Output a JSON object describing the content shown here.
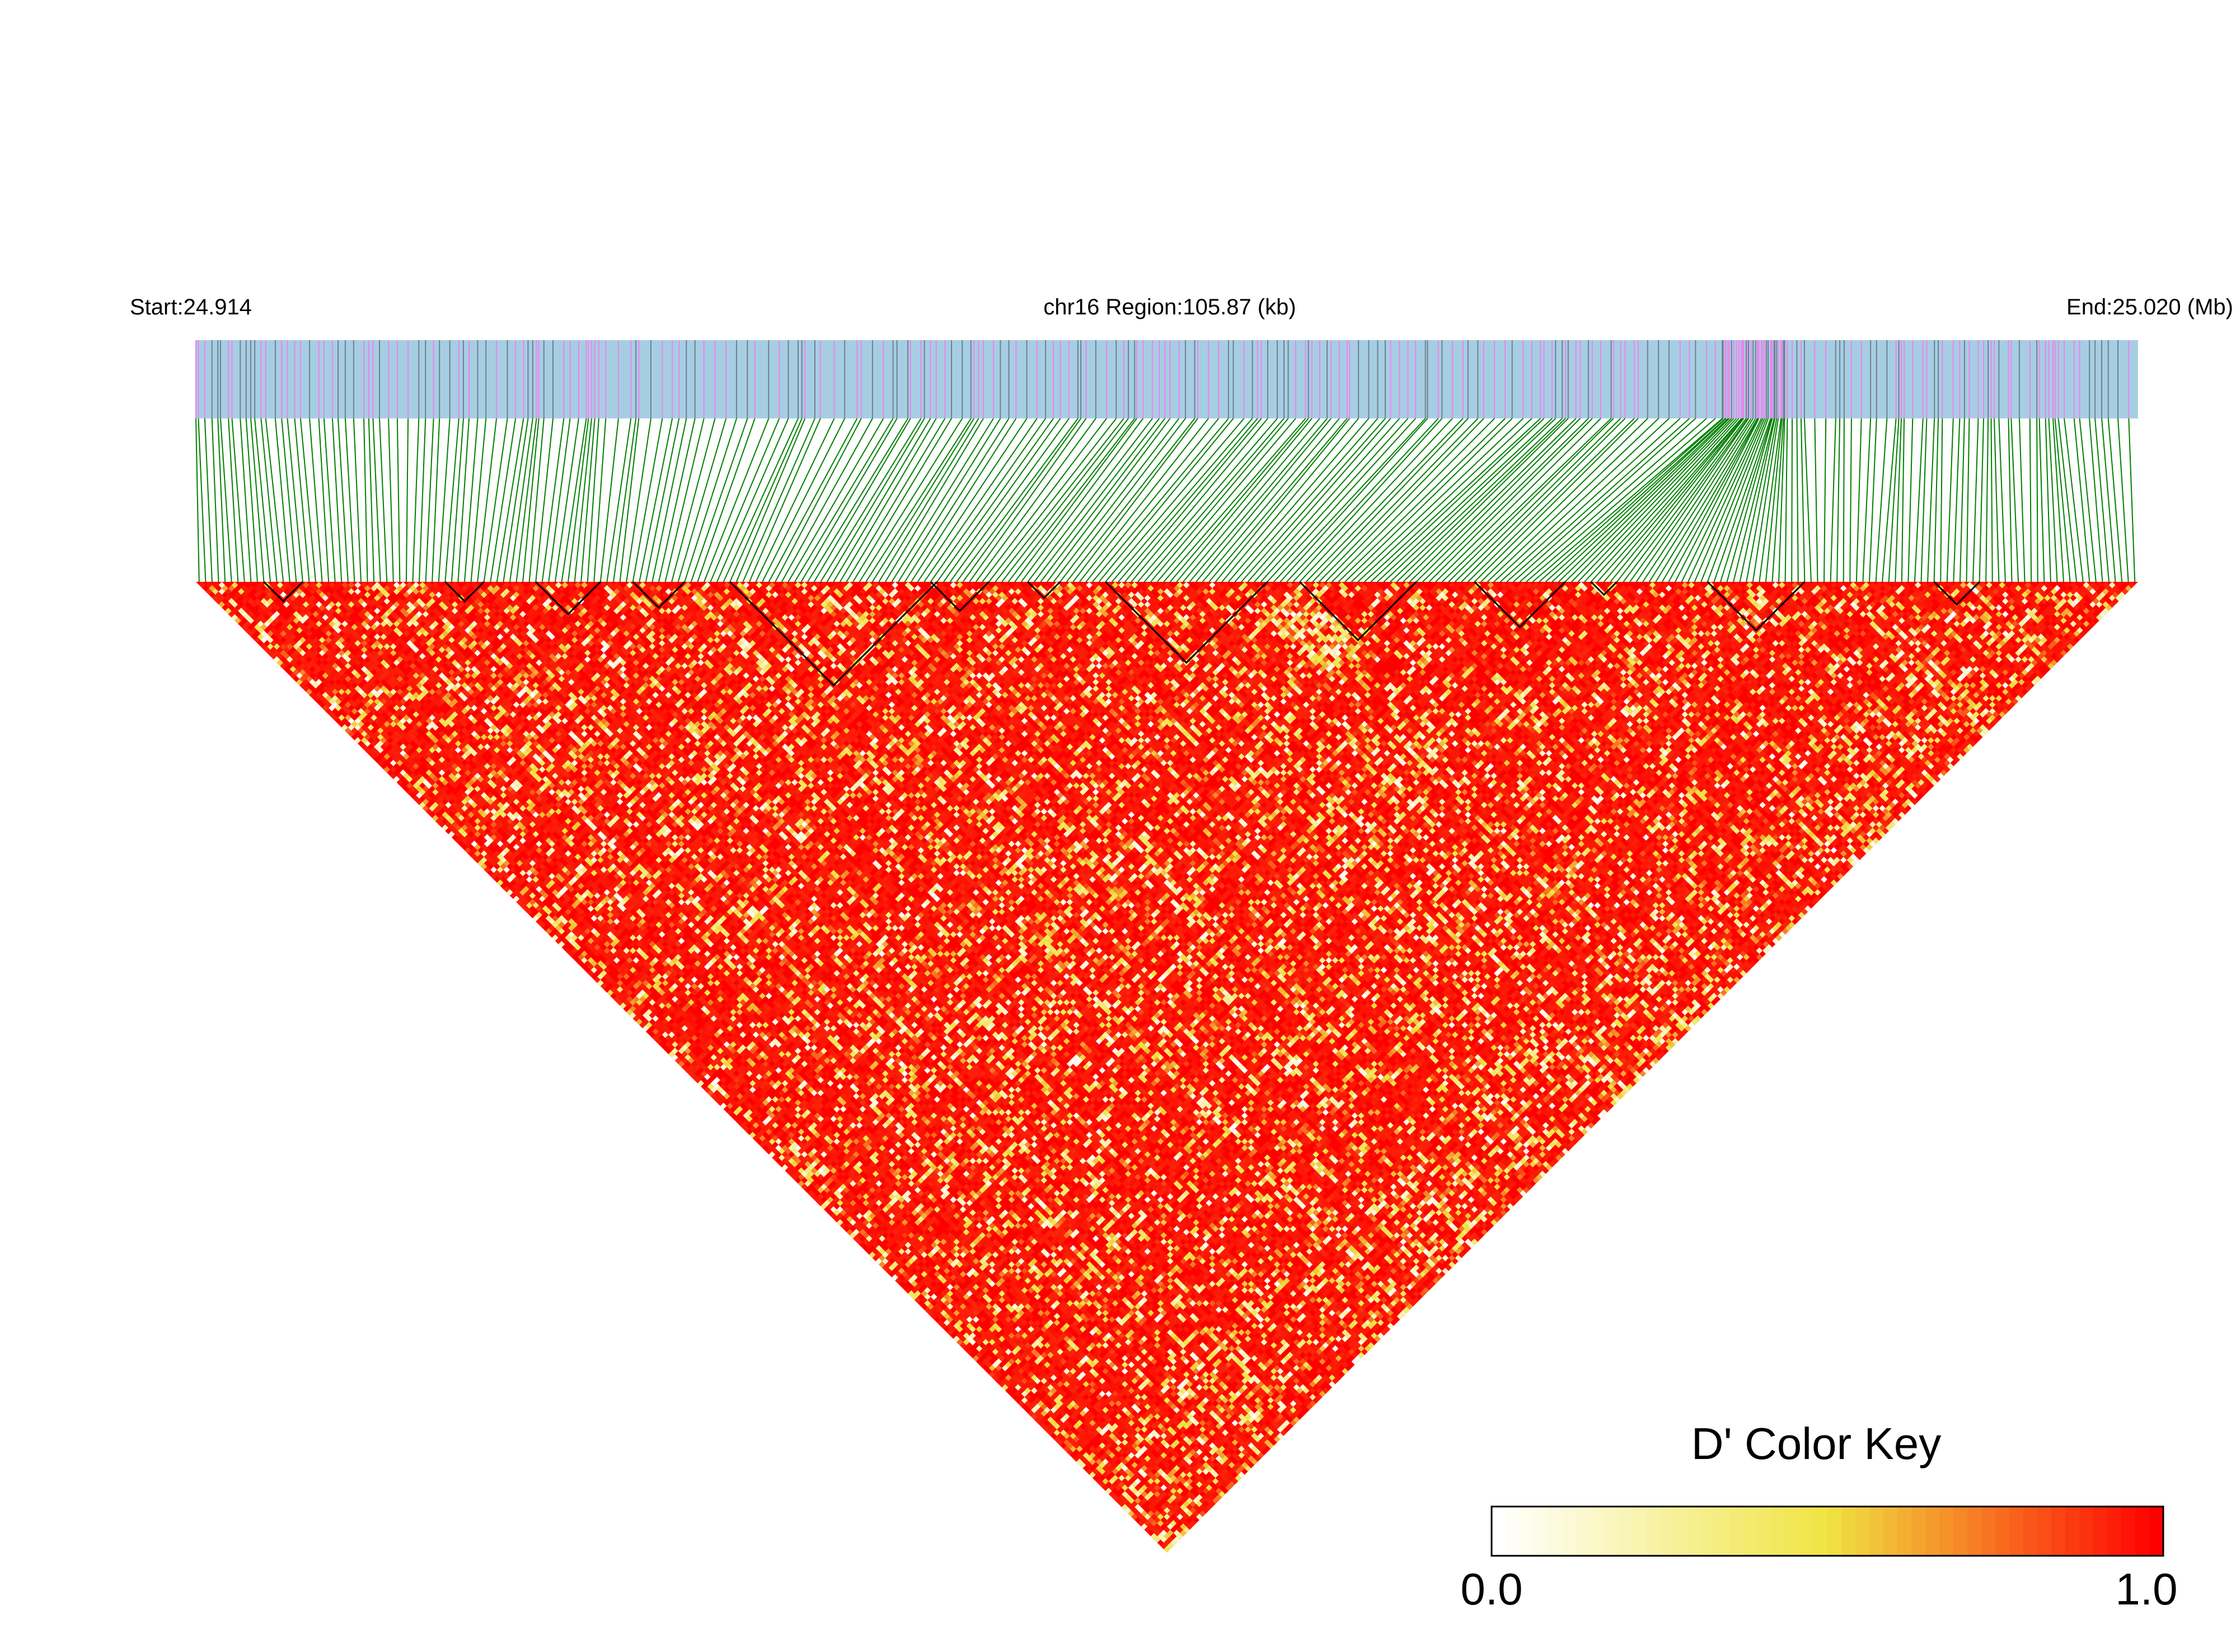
{
  "chart_data": {
    "type": "heatmap",
    "subtype": "LD triangle (D')",
    "header": {
      "start_label": "Start:24.914",
      "region_label": "chr16 Region:105.87 (kb)",
      "end_label": "End:25.020 (Mb)"
    },
    "region": {
      "chromosome": "chr16",
      "start_mb": 24.914,
      "end_mb": 25.02,
      "length_kb": 105.87
    },
    "snp_count": 300,
    "snp_track_colors": {
      "background": "#a6cee3",
      "variant_a": "#ee82ee",
      "variant_b": "#708090",
      "connector": "#008000"
    },
    "haplotype_blocks": [
      {
        "start_index": 10,
        "end_index": 16
      },
      {
        "start_index": 38,
        "end_index": 44
      },
      {
        "start_index": 52,
        "end_index": 62
      },
      {
        "start_index": 67,
        "end_index": 75
      },
      {
        "start_index": 82,
        "end_index": 114
      },
      {
        "start_index": 113,
        "end_index": 122
      },
      {
        "start_index": 128,
        "end_index": 133
      },
      {
        "start_index": 140,
        "end_index": 165
      },
      {
        "start_index": 170,
        "end_index": 188
      },
      {
        "start_index": 197,
        "end_index": 211
      },
      {
        "start_index": 215,
        "end_index": 219
      },
      {
        "start_index": 233,
        "end_index": 248
      },
      {
        "start_index": 268,
        "end_index": 275
      }
    ],
    "dprime_summary": {
      "predominant_value": 1.0,
      "note": "Most SNP pairs show D' near 1.0 (red); scattered pairs with low-to-moderate D' (white/yellow/orange)."
    },
    "color_key": {
      "title": "D' Color Key",
      "min_label": "0.0",
      "max_label": "1.0",
      "range": [
        0.0,
        1.0
      ],
      "colors": [
        "#ffffff",
        "#f0e442",
        "#ff0000"
      ]
    }
  }
}
